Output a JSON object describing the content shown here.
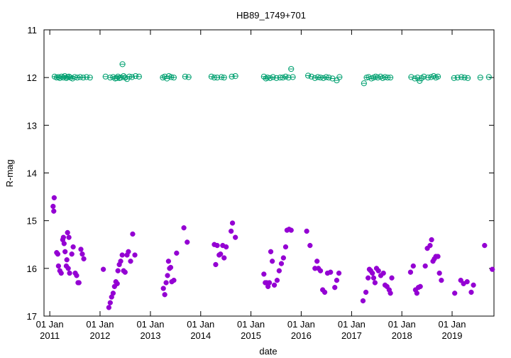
{
  "chart_data": {
    "type": "scatter",
    "title": "HB89_1749+701",
    "xlabel": "date",
    "ylabel": "R-mag",
    "ylim": [
      17,
      11
    ],
    "y_inverted": true,
    "xlim": [
      "2010-11-20",
      "2019-11-01"
    ],
    "grid": false,
    "legend": "none",
    "yticks": [
      "11",
      "12",
      "13",
      "14",
      "15",
      "16",
      "17"
    ],
    "xticks": [
      {
        "date": "2011-01-01",
        "line1": "01 Jan",
        "line2": "2011"
      },
      {
        "date": "2012-01-01",
        "line1": "01 Jan",
        "line2": "2012"
      },
      {
        "date": "2013-01-01",
        "line1": "01 Jan",
        "line2": "2013"
      },
      {
        "date": "2014-01-01",
        "line1": "01 Jan",
        "line2": "2014"
      },
      {
        "date": "2015-01-01",
        "line1": "01 Jan",
        "line2": "2015"
      },
      {
        "date": "2016-01-01",
        "line1": "01 Jan",
        "line2": "2016"
      },
      {
        "date": "2017-01-01",
        "line1": "01 Jan",
        "line2": "2017"
      },
      {
        "date": "2018-01-01",
        "line1": "01 Jan",
        "line2": "2018"
      },
      {
        "date": "2019-01-01",
        "line1": "01 Jan",
        "line2": "2019"
      }
    ],
    "series": [
      {
        "color": "#00a070",
        "marker": "open-circle",
        "points": [
          [
            "2011-02-05",
            11.98
          ],
          [
            "2011-02-20",
            12.0
          ],
          [
            "2011-03-05",
            11.99
          ],
          [
            "2011-03-15",
            12.01
          ],
          [
            "2011-03-28",
            11.98
          ],
          [
            "2011-04-10",
            12.0
          ],
          [
            "2011-04-20",
            11.97
          ],
          [
            "2011-05-01",
            12.01
          ],
          [
            "2011-05-10",
            11.99
          ],
          [
            "2011-05-20",
            11.98
          ],
          [
            "2011-06-01",
            12.0
          ],
          [
            "2011-06-15",
            12.02
          ],
          [
            "2011-07-01",
            11.99
          ],
          [
            "2011-07-20",
            12.0
          ],
          [
            "2011-08-10",
            11.99
          ],
          [
            "2011-09-01",
            12.0
          ],
          [
            "2011-09-25",
            11.99
          ],
          [
            "2011-10-20",
            12.0
          ],
          [
            "2012-02-10",
            11.98
          ],
          [
            "2012-03-15",
            12.0
          ],
          [
            "2012-04-05",
            11.99
          ],
          [
            "2012-04-20",
            12.02
          ],
          [
            "2012-05-01",
            12.01
          ],
          [
            "2012-05-10",
            11.98
          ],
          [
            "2012-05-20",
            12.01
          ],
          [
            "2012-06-01",
            12.0
          ],
          [
            "2012-06-12",
            11.72
          ],
          [
            "2012-06-20",
            11.97
          ],
          [
            "2012-07-01",
            12.0
          ],
          [
            "2012-07-15",
            12.03
          ],
          [
            "2012-08-01",
            11.98
          ],
          [
            "2012-08-20",
            11.99
          ],
          [
            "2012-09-15",
            11.97
          ],
          [
            "2012-10-10",
            11.98
          ],
          [
            "2013-04-01",
            12.0
          ],
          [
            "2013-04-15",
            11.98
          ],
          [
            "2013-05-01",
            12.02
          ],
          [
            "2013-05-15",
            11.97
          ],
          [
            "2013-06-01",
            11.99
          ],
          [
            "2013-06-20",
            12.0
          ],
          [
            "2013-09-10",
            11.98
          ],
          [
            "2013-10-05",
            11.99
          ],
          [
            "2014-03-20",
            11.98
          ],
          [
            "2014-04-10",
            12.0
          ],
          [
            "2014-05-01",
            12.0
          ],
          [
            "2014-06-01",
            11.99
          ],
          [
            "2014-06-20",
            12.0
          ],
          [
            "2014-08-15",
            11.98
          ],
          [
            "2014-09-10",
            11.97
          ],
          [
            "2015-04-05",
            11.98
          ],
          [
            "2015-04-20",
            12.02
          ],
          [
            "2015-05-01",
            12.0
          ],
          [
            "2015-05-20",
            12.01
          ],
          [
            "2015-06-10",
            11.99
          ],
          [
            "2015-07-05",
            12.01
          ],
          [
            "2015-08-01",
            12.0
          ],
          [
            "2015-08-20",
            12.0
          ],
          [
            "2015-09-10",
            11.98
          ],
          [
            "2015-10-01",
            12.0
          ],
          [
            "2015-10-20",
            11.82
          ],
          [
            "2015-11-01",
            11.99
          ],
          [
            "2016-02-20",
            11.96
          ],
          [
            "2016-03-15",
            11.98
          ],
          [
            "2016-04-10",
            12.01
          ],
          [
            "2016-05-01",
            11.99
          ],
          [
            "2016-05-20",
            12.0
          ],
          [
            "2016-06-10",
            12.01
          ],
          [
            "2016-07-01",
            11.99
          ],
          [
            "2016-07-20",
            12.0
          ],
          [
            "2016-08-15",
            12.02
          ],
          [
            "2016-09-15",
            12.06
          ],
          [
            "2016-10-05",
            11.99
          ],
          [
            "2017-04-01",
            12.12
          ],
          [
            "2017-04-20",
            12.0
          ],
          [
            "2017-05-05",
            11.99
          ],
          [
            "2017-05-25",
            12.02
          ],
          [
            "2017-06-10",
            12.0
          ],
          [
            "2017-06-25",
            11.98
          ],
          [
            "2017-07-10",
            12.0
          ],
          [
            "2017-07-30",
            11.98
          ],
          [
            "2017-08-15",
            12.01
          ],
          [
            "2017-09-01",
            11.99
          ],
          [
            "2017-09-20",
            12.0
          ],
          [
            "2017-10-10",
            12.0
          ],
          [
            "2018-03-10",
            11.99
          ],
          [
            "2018-04-05",
            12.02
          ],
          [
            "2018-04-25",
            12.0
          ],
          [
            "2018-05-10",
            12.07
          ],
          [
            "2018-05-25",
            12.01
          ],
          [
            "2018-06-10",
            11.98
          ],
          [
            "2018-07-10",
            12.0
          ],
          [
            "2018-08-01",
            11.99
          ],
          [
            "2018-08-20",
            11.97
          ],
          [
            "2018-09-05",
            12.0
          ],
          [
            "2018-09-20",
            11.98
          ],
          [
            "2019-01-15",
            12.01
          ],
          [
            "2019-02-10",
            12.0
          ],
          [
            "2019-03-10",
            11.99
          ],
          [
            "2019-04-01",
            12.0
          ],
          [
            "2019-04-25",
            12.01
          ],
          [
            "2019-07-25",
            12.0
          ],
          [
            "2019-09-25",
            11.99
          ]
        ]
      },
      {
        "color": "#9400d3",
        "marker": "filled-circle",
        "points": [
          [
            "2011-01-25",
            14.7
          ],
          [
            "2011-01-30",
            14.8
          ],
          [
            "2011-02-02",
            14.52
          ],
          [
            "2011-02-20",
            15.67
          ],
          [
            "2011-02-28",
            15.7
          ],
          [
            "2011-03-05",
            15.95
          ],
          [
            "2011-03-15",
            16.05
          ],
          [
            "2011-03-25",
            16.1
          ],
          [
            "2011-04-05",
            15.4
          ],
          [
            "2011-04-10",
            15.35
          ],
          [
            "2011-04-15",
            15.48
          ],
          [
            "2011-04-22",
            15.65
          ],
          [
            "2011-05-01",
            15.95
          ],
          [
            "2011-05-05",
            15.82
          ],
          [
            "2011-05-10",
            15.25
          ],
          [
            "2011-05-15",
            16.0
          ],
          [
            "2011-05-20",
            15.35
          ],
          [
            "2011-05-25",
            16.1
          ],
          [
            "2011-06-10",
            15.7
          ],
          [
            "2011-06-20",
            15.55
          ],
          [
            "2011-07-05",
            16.1
          ],
          [
            "2011-07-15",
            16.15
          ],
          [
            "2011-07-25",
            16.3
          ],
          [
            "2011-08-01",
            16.3
          ],
          [
            "2011-08-15",
            15.6
          ],
          [
            "2011-08-25",
            15.7
          ],
          [
            "2011-09-05",
            15.8
          ],
          [
            "2012-01-25",
            16.02
          ],
          [
            "2012-03-05",
            16.82
          ],
          [
            "2012-03-15",
            16.72
          ],
          [
            "2012-03-25",
            16.6
          ],
          [
            "2012-04-05",
            16.52
          ],
          [
            "2012-04-15",
            16.38
          ],
          [
            "2012-04-25",
            16.28
          ],
          [
            "2012-05-05",
            16.32
          ],
          [
            "2012-05-10",
            16.05
          ],
          [
            "2012-05-20",
            15.92
          ],
          [
            "2012-05-30",
            15.85
          ],
          [
            "2012-06-10",
            15.72
          ],
          [
            "2012-06-20",
            16.05
          ],
          [
            "2012-07-01",
            16.08
          ],
          [
            "2012-07-15",
            15.72
          ],
          [
            "2012-07-25",
            15.65
          ],
          [
            "2012-08-10",
            15.85
          ],
          [
            "2012-08-25",
            15.28
          ],
          [
            "2012-09-10",
            15.72
          ],
          [
            "2013-04-05",
            16.42
          ],
          [
            "2013-04-15",
            16.55
          ],
          [
            "2013-04-25",
            16.3
          ],
          [
            "2013-05-05",
            16.15
          ],
          [
            "2013-05-12",
            15.85
          ],
          [
            "2013-05-20",
            16.0
          ],
          [
            "2013-05-28",
            15.98
          ],
          [
            "2013-06-05",
            16.28
          ],
          [
            "2013-06-20",
            16.25
          ],
          [
            "2013-07-10",
            15.68
          ],
          [
            "2013-09-01",
            15.15
          ],
          [
            "2013-09-25",
            15.45
          ],
          [
            "2014-04-10",
            15.5
          ],
          [
            "2014-04-20",
            15.92
          ],
          [
            "2014-05-01",
            15.52
          ],
          [
            "2014-05-15",
            15.72
          ],
          [
            "2014-05-25",
            15.7
          ],
          [
            "2014-06-10",
            15.52
          ],
          [
            "2014-06-20",
            15.78
          ],
          [
            "2014-07-05",
            15.55
          ],
          [
            "2014-08-10",
            15.22
          ],
          [
            "2014-08-20",
            15.05
          ],
          [
            "2014-09-10",
            15.35
          ],
          [
            "2015-04-05",
            16.12
          ],
          [
            "2015-04-15",
            16.3
          ],
          [
            "2015-04-25",
            16.3
          ],
          [
            "2015-05-05",
            16.38
          ],
          [
            "2015-05-15",
            16.3
          ],
          [
            "2015-05-25",
            15.65
          ],
          [
            "2015-06-05",
            15.85
          ],
          [
            "2015-06-20",
            16.35
          ],
          [
            "2015-07-10",
            16.25
          ],
          [
            "2015-07-25",
            16.05
          ],
          [
            "2015-08-10",
            15.9
          ],
          [
            "2015-08-25",
            15.78
          ],
          [
            "2015-09-10",
            15.55
          ],
          [
            "2015-09-20",
            15.2
          ],
          [
            "2015-10-05",
            15.18
          ],
          [
            "2015-10-20",
            15.2
          ],
          [
            "2016-02-10",
            15.22
          ],
          [
            "2016-03-05",
            15.52
          ],
          [
            "2016-04-10",
            16.0
          ],
          [
            "2016-04-25",
            15.85
          ],
          [
            "2016-05-05",
            16.0
          ],
          [
            "2016-05-20",
            16.05
          ],
          [
            "2016-06-05",
            16.45
          ],
          [
            "2016-06-20",
            16.5
          ],
          [
            "2016-07-10",
            16.1
          ],
          [
            "2016-08-01",
            16.08
          ],
          [
            "2016-09-01",
            16.4
          ],
          [
            "2016-09-15",
            16.25
          ],
          [
            "2016-10-01",
            16.1
          ],
          [
            "2017-03-25",
            16.68
          ],
          [
            "2017-04-15",
            16.5
          ],
          [
            "2017-05-01",
            16.2
          ],
          [
            "2017-05-10",
            16.02
          ],
          [
            "2017-05-20",
            16.05
          ],
          [
            "2017-06-01",
            16.1
          ],
          [
            "2017-06-10",
            16.2
          ],
          [
            "2017-06-20",
            16.3
          ],
          [
            "2017-07-01",
            16.0
          ],
          [
            "2017-07-15",
            16.05
          ],
          [
            "2017-08-01",
            16.15
          ],
          [
            "2017-08-20",
            16.1
          ],
          [
            "2017-09-01",
            16.35
          ],
          [
            "2017-09-15",
            16.38
          ],
          [
            "2017-10-01",
            16.45
          ],
          [
            "2017-10-10",
            16.52
          ],
          [
            "2017-10-20",
            16.2
          ],
          [
            "2018-03-05",
            16.08
          ],
          [
            "2018-03-25",
            15.95
          ],
          [
            "2018-04-10",
            16.45
          ],
          [
            "2018-04-20",
            16.52
          ],
          [
            "2018-05-01",
            16.4
          ],
          [
            "2018-05-15",
            16.38
          ],
          [
            "2018-06-20",
            15.95
          ],
          [
            "2018-07-05",
            15.58
          ],
          [
            "2018-07-25",
            15.52
          ],
          [
            "2018-08-05",
            15.4
          ],
          [
            "2018-08-15",
            15.85
          ],
          [
            "2018-08-25",
            15.8
          ],
          [
            "2018-09-05",
            15.75
          ],
          [
            "2018-09-20",
            15.75
          ],
          [
            "2018-10-01",
            16.1
          ],
          [
            "2018-10-15",
            16.25
          ],
          [
            "2019-01-20",
            16.52
          ],
          [
            "2019-03-05",
            16.25
          ],
          [
            "2019-03-25",
            16.32
          ],
          [
            "2019-04-20",
            16.28
          ],
          [
            "2019-05-20",
            16.5
          ],
          [
            "2019-06-05",
            16.35
          ],
          [
            "2019-08-25",
            15.52
          ],
          [
            "2019-10-20",
            16.02
          ]
        ]
      }
    ]
  }
}
